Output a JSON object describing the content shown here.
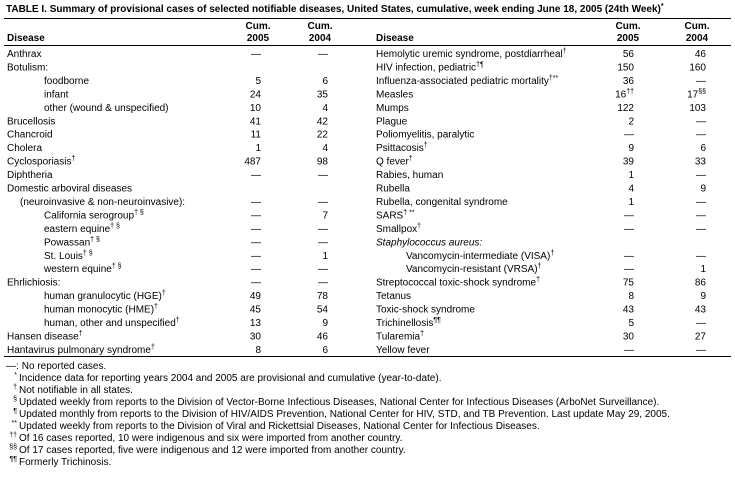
{
  "title": {
    "text": "TABLE I. Summary of provisional cases of selected notifiable diseases, United States, cumulative, week ending June 18, 2005 (24th Week)",
    "note": "*"
  },
  "header": {
    "disease": "Disease",
    "cum": "Cum.",
    "y2005": "2005",
    "y2004": "2004"
  },
  "rows": [
    {
      "left": {
        "disease": "Anthrax",
        "c2005": "—",
        "c2004": "—"
      },
      "right": {
        "disease": "Hemolytic uremic syndrome, postdiarrheal",
        "note": "†",
        "c2005": 56,
        "c2004": 46
      }
    },
    {
      "left": {
        "disease": "Botulism:"
      },
      "right": {
        "disease": "HIV infection, pediatric",
        "note": "†¶",
        "c2005": 150,
        "c2004": 160
      }
    },
    {
      "left": {
        "disease": "foodborne",
        "c2005": 5,
        "c2004": 6
      },
      "right": {
        "disease": "Influenza-associated pediatric mortality",
        "note": "†**",
        "c2005": 36,
        "c2004": "—"
      }
    },
    {
      "left": {
        "disease": "infant",
        "c2005": 24,
        "c2004": 35
      },
      "right": {
        "disease": "Measles",
        "c2005": 16,
        "c2005_note": "††",
        "c2004": 17,
        "c2004_note": "§§"
      }
    },
    {
      "left": {
        "disease": "other (wound & unspecified)",
        "c2005": 10,
        "c2004": 4
      },
      "right": {
        "disease": "Mumps",
        "c2005": 122,
        "c2004": 103
      }
    },
    {
      "left": {
        "disease": "Brucellosis",
        "c2005": 41,
        "c2004": 42
      },
      "right": {
        "disease": "Plague",
        "c2005": 2,
        "c2004": "—"
      }
    },
    {
      "left": {
        "disease": "Chancroid",
        "c2005": 11,
        "c2004": 22
      },
      "right": {
        "disease": "Poliomyelitis, paralytic",
        "c2005": "—",
        "c2004": "—"
      }
    },
    {
      "left": {
        "disease": "Cholera",
        "c2005": 1,
        "c2004": 4
      },
      "right": {
        "disease": "Psittacosis",
        "note": "†",
        "c2005": 9,
        "c2004": 6
      }
    },
    {
      "left": {
        "disease": "Cyclosporiasis",
        "note": "†",
        "c2005": 487,
        "c2004": 98
      },
      "right": {
        "disease": "Q fever",
        "note": "†",
        "c2005": 39,
        "c2004": 33
      }
    },
    {
      "left": {
        "disease": "Diphtheria",
        "c2005": "—",
        "c2004": "—"
      },
      "right": {
        "disease": "Rabies, human",
        "c2005": 1,
        "c2004": "—"
      }
    },
    {
      "left": {
        "disease": "Domestic arboviral diseases"
      },
      "right": {
        "disease": "Rubella",
        "c2005": 4,
        "c2004": 9
      }
    },
    {
      "left": {
        "disease": "(neuroinvasive & non-neuroinvasive):",
        "c2005": "—",
        "c2004": "—"
      },
      "right": {
        "disease": "Rubella, congenital syndrome",
        "c2005": 1,
        "c2004": "—"
      }
    },
    {
      "left": {
        "disease": "California serogroup",
        "note": "† §",
        "c2005": "—",
        "c2004": 7
      },
      "right": {
        "disease": "SARS",
        "note": "† **",
        "c2005": "—",
        "c2004": "—"
      }
    },
    {
      "left": {
        "disease": "eastern equine",
        "note": "† §",
        "c2005": "—",
        "c2004": "—"
      },
      "right": {
        "disease": "Smallpox",
        "note": "†",
        "c2005": "—",
        "c2004": "—"
      }
    },
    {
      "left": {
        "disease": "Powassan",
        "note": "† §",
        "c2005": "—",
        "c2004": "—"
      },
      "right": {
        "disease": "Staphylococcus aureus:"
      }
    },
    {
      "left": {
        "disease": "St. Louis",
        "note": "† §",
        "c2005": "—",
        "c2004": 1
      },
      "right": {
        "disease": "Vancomycin-intermediate (VISA)",
        "note": "†",
        "c2005": "—",
        "c2004": "—"
      }
    },
    {
      "left": {
        "disease": "western equine",
        "note": "† §",
        "c2005": "—",
        "c2004": "—"
      },
      "right": {
        "disease": "Vancomycin-resistant (VRSA)",
        "note": "†",
        "c2005": "—",
        "c2004": 1
      }
    },
    {
      "left": {
        "disease": "Ehrlichiosis:",
        "c2005": "—",
        "c2004": "—"
      },
      "right": {
        "disease": "Streptococcal toxic-shock syndrome",
        "note": "†",
        "c2005": 75,
        "c2004": 86
      }
    },
    {
      "left": {
        "disease": "human granulocytic (HGE)",
        "note": "†",
        "c2005": 49,
        "c2004": 78
      },
      "right": {
        "disease": "Tetanus",
        "c2005": 8,
        "c2004": 9
      }
    },
    {
      "left": {
        "disease": "human monocytic (HME)",
        "note": "†",
        "c2005": 45,
        "c2004": 54
      },
      "right": {
        "disease": "Toxic-shock syndrome",
        "c2005": 43,
        "c2004": 43
      }
    },
    {
      "left": {
        "disease": "human, other and unspecified",
        "note": "†",
        "c2005": 13,
        "c2004": 9
      },
      "right": {
        "disease": "Trichinellosis",
        "note": "¶¶",
        "c2005": 5,
        "c2004": "—"
      }
    },
    {
      "left": {
        "disease": "Hansen disease",
        "note": "†",
        "c2005": 30,
        "c2004": 46
      },
      "right": {
        "disease": "Tularemia",
        "note": "†",
        "c2005": 30,
        "c2004": 27
      }
    },
    {
      "left": {
        "disease": "Hantavirus pulmonary syndrome",
        "note": "†",
        "c2005": 8,
        "c2004": 6
      },
      "right": {
        "disease": "Yellow fever",
        "c2005": "—",
        "c2004": "—"
      }
    }
  ],
  "footnotes": [
    {
      "symbol": "—:",
      "text": "No reported cases."
    },
    {
      "symbol": "*",
      "text": "Incidence data for reporting years 2004 and 2005 are provisional and cumulative (year-to-date)."
    },
    {
      "symbol": "†",
      "text": "Not notifiable in all states."
    },
    {
      "symbol": "§",
      "text": "Updated weekly from reports to the Division of Vector-Borne Infectious Diseases, National Center for Infectious Diseases (ArboNet Surveillance)."
    },
    {
      "symbol": "¶",
      "text": "Updated monthly from reports to the Division of HIV/AIDS Prevention, National Center for HIV, STD, and TB Prevention. Last update May 29, 2005."
    },
    {
      "symbol": "**",
      "text": "Updated weekly from reports to the Division of Viral and Rickettsial Diseases, National Center for Infectious Diseases."
    },
    {
      "symbol": "††",
      "text": "Of 16 cases reported, 10 were indigenous and six were imported from another country."
    },
    {
      "symbol": "§§",
      "text": "Of 17 cases reported, five were indigenous and 12 were imported from another country."
    },
    {
      "symbol": "¶¶",
      "text": "Formerly Trichinosis."
    }
  ]
}
